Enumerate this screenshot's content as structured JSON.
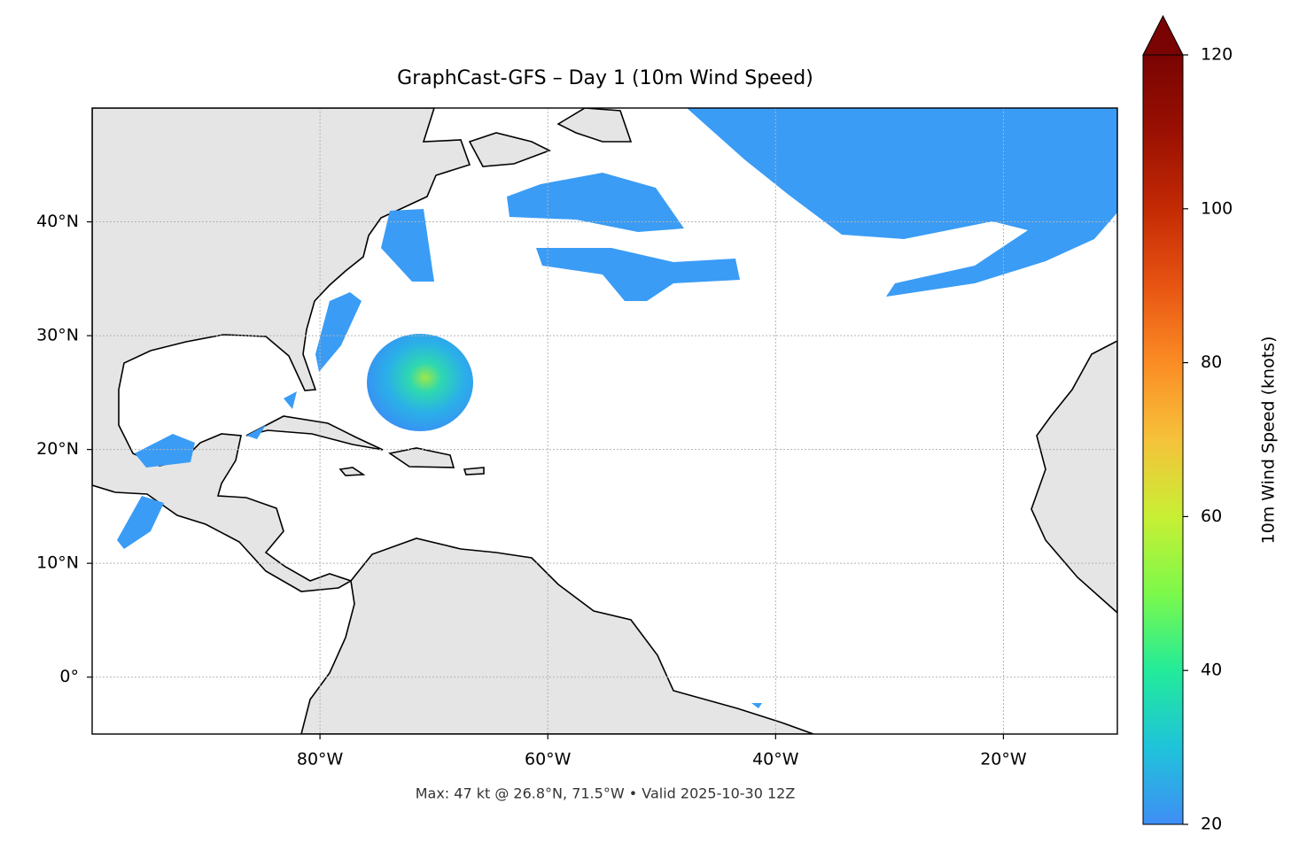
{
  "map": {
    "title": "GraphCast-GFS – Day 1 (10m Wind Speed)",
    "extent": {
      "lon": [
        -100,
        -10
      ],
      "lat": [
        -5,
        50
      ]
    },
    "lon_ticks": [
      {
        "value": -80,
        "label": "80°W"
      },
      {
        "value": -60,
        "label": "60°W"
      },
      {
        "value": -40,
        "label": "40°W"
      },
      {
        "value": -20,
        "label": "20°W"
      }
    ],
    "lat_ticks": [
      {
        "value": 0,
        "label": "0°"
      },
      {
        "value": 10,
        "label": "10°N"
      },
      {
        "value": 20,
        "label": "20°N"
      },
      {
        "value": 30,
        "label": "30°N"
      },
      {
        "value": 40,
        "label": "40°N"
      }
    ],
    "grid": true,
    "colorbar": {
      "label": "10m Wind Speed (knots)",
      "range": [
        20,
        120
      ],
      "ticks": [
        20,
        40,
        60,
        80,
        100,
        120
      ]
    },
    "footnote": "Max: 47 kt @ 26.8°N, 71.5°W • Valid 2025-10-30 12Z"
  }
}
